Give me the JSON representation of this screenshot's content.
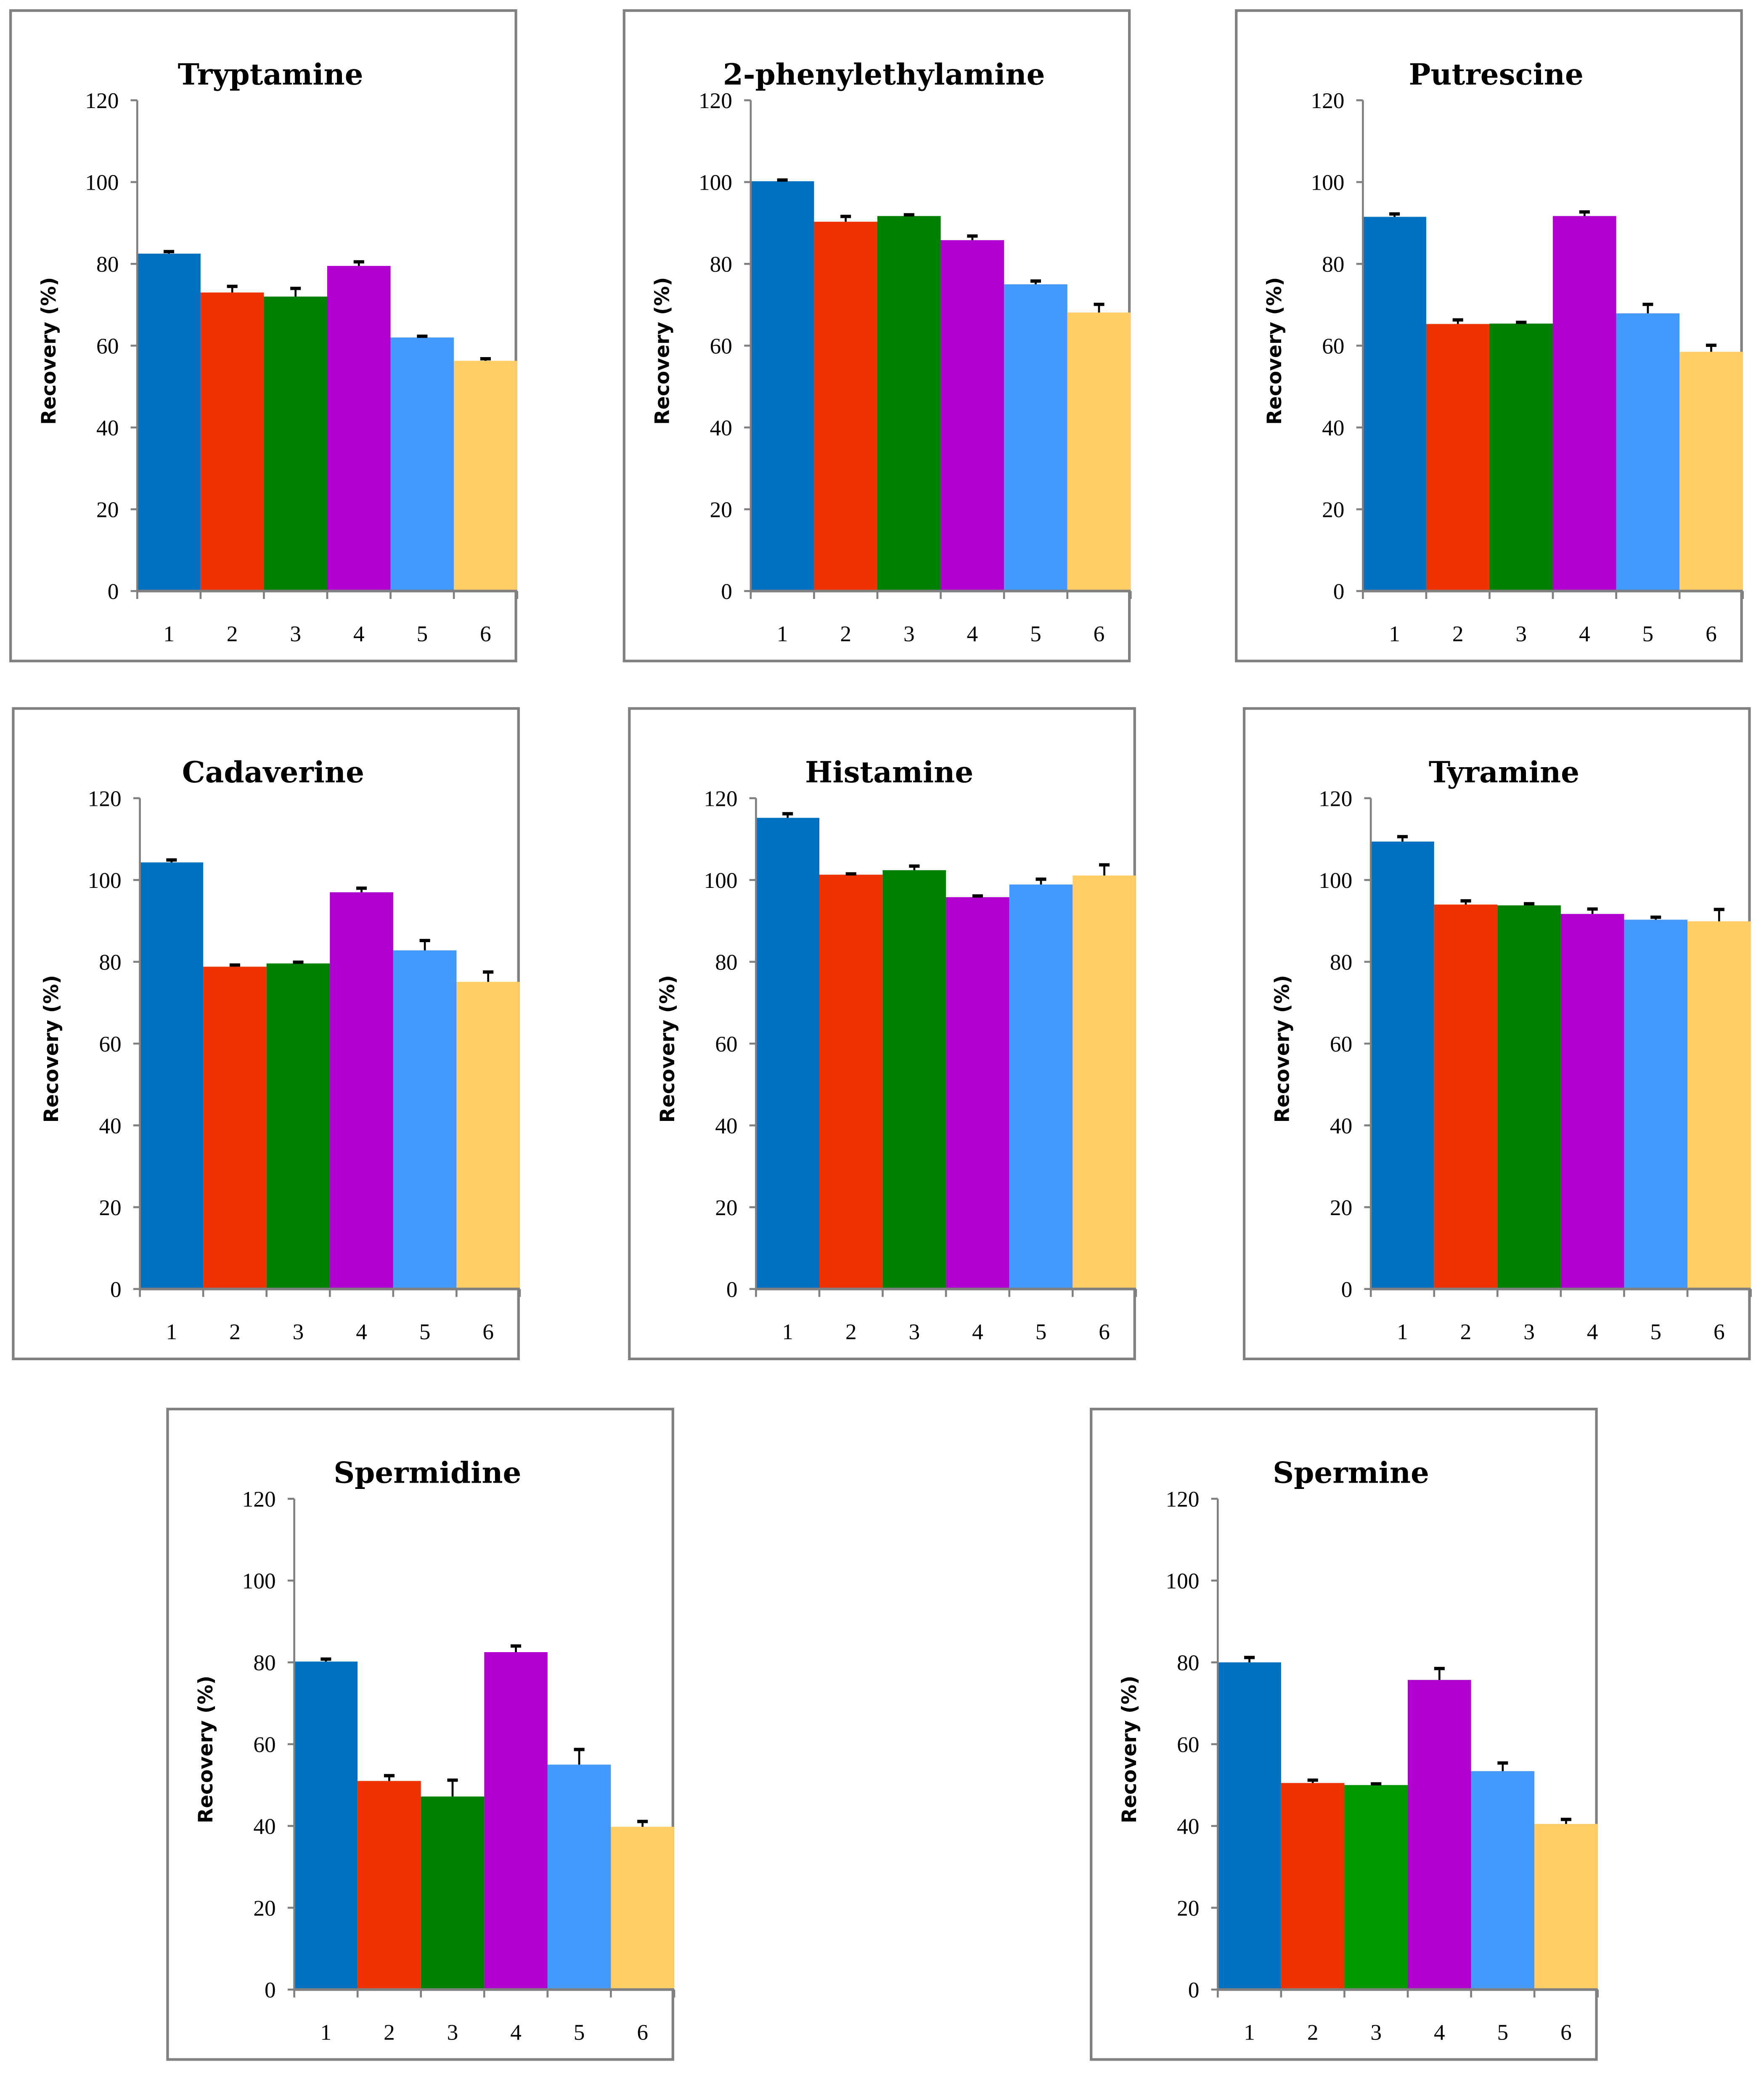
{
  "chart_data": [
    {
      "type": "bar",
      "title": "Tryptamine",
      "ylabel": "Recovery (%)",
      "xlabel": "",
      "ylim": [
        0,
        120
      ],
      "yticks": [
        0,
        20,
        40,
        60,
        80,
        100,
        120
      ],
      "categories": [
        "1",
        "2",
        "3",
        "4",
        "5",
        "6"
      ],
      "values": [
        82.5,
        73,
        72,
        79.5,
        62,
        56.3
      ],
      "errors": [
        0.5,
        1.5,
        2,
        1,
        0.3,
        0.5
      ],
      "colors": [
        "#0070C0",
        "#EE3300",
        "#008000",
        "#B000D0",
        "#4499FF",
        "#FFCC66"
      ]
    },
    {
      "type": "bar",
      "title": "2-phenylethylamine",
      "ylabel": "Recovery (%)",
      "xlabel": "",
      "ylim": [
        0,
        120
      ],
      "yticks": [
        0,
        20,
        40,
        60,
        80,
        100,
        120
      ],
      "categories": [
        "1",
        "2",
        "3",
        "4",
        "5",
        "6"
      ],
      "values": [
        100.2,
        90.3,
        91.7,
        85.8,
        75,
        68.1
      ],
      "errors": [
        0.3,
        1.3,
        0.3,
        1,
        0.8,
        2
      ],
      "colors": [
        "#0070C0",
        "#EE3300",
        "#008000",
        "#B000D0",
        "#4499FF",
        "#FFCC66"
      ]
    },
    {
      "type": "bar",
      "title": "Putrescine",
      "ylabel": "Recovery (%)",
      "xlabel": "",
      "ylim": [
        0,
        120
      ],
      "yticks": [
        0,
        20,
        40,
        60,
        80,
        100,
        120
      ],
      "categories": [
        "1",
        "2",
        "3",
        "4",
        "5",
        "6"
      ],
      "values": [
        91.5,
        65.3,
        65.4,
        91.7,
        67.9,
        58.5
      ],
      "errors": [
        0.7,
        1,
        0.3,
        1,
        2.2,
        1.6
      ],
      "colors": [
        "#0070C0",
        "#EE3300",
        "#008000",
        "#B000D0",
        "#4499FF",
        "#FFCC66"
      ]
    },
    {
      "type": "bar",
      "title": "Cadaverine",
      "ylabel": "Recovery (%)",
      "xlabel": "",
      "ylim": [
        0,
        120
      ],
      "yticks": [
        0,
        20,
        40,
        60,
        80,
        100,
        120
      ],
      "categories": [
        "1",
        "2",
        "3",
        "4",
        "5",
        "6"
      ],
      "values": [
        104.3,
        78.8,
        79.6,
        97,
        82.8,
        75.1
      ],
      "errors": [
        0.6,
        0.4,
        0.3,
        1,
        2.4,
        2.4
      ],
      "colors": [
        "#0070C0",
        "#EE3300",
        "#008000",
        "#B000D0",
        "#4499FF",
        "#FFCC66"
      ]
    },
    {
      "type": "bar",
      "title": "Histamine",
      "ylabel": "Recovery (%)",
      "xlabel": "",
      "ylim": [
        0,
        120
      ],
      "yticks": [
        0,
        20,
        40,
        60,
        80,
        100,
        120
      ],
      "categories": [
        "1",
        "2",
        "3",
        "4",
        "5",
        "6"
      ],
      "values": [
        115.2,
        101.3,
        102.4,
        95.8,
        98.9,
        101.1
      ],
      "errors": [
        1,
        0.2,
        1,
        0.3,
        1.3,
        2.6
      ],
      "colors": [
        "#0070C0",
        "#EE3300",
        "#008000",
        "#B000D0",
        "#4499FF",
        "#FFCC66"
      ]
    },
    {
      "type": "bar",
      "title": "Tyramine",
      "ylabel": "Recovery (%)",
      "xlabel": "",
      "ylim": [
        0,
        120
      ],
      "yticks": [
        0,
        20,
        40,
        60,
        80,
        100,
        120
      ],
      "categories": [
        "1",
        "2",
        "3",
        "4",
        "5",
        "6"
      ],
      "values": [
        109.4,
        94,
        93.8,
        91.7,
        90.3,
        89.9
      ],
      "errors": [
        1.2,
        0.9,
        0.4,
        1.2,
        0.6,
        2.9
      ],
      "colors": [
        "#0070C0",
        "#EE3300",
        "#008000",
        "#B000D0",
        "#4499FF",
        "#FFCC66"
      ]
    },
    {
      "type": "bar",
      "title": "Spermidine",
      "ylabel": "Recovery (%)",
      "xlabel": "",
      "ylim": [
        0,
        120
      ],
      "yticks": [
        0,
        20,
        40,
        60,
        80,
        100,
        120
      ],
      "categories": [
        "1",
        "2",
        "3",
        "4",
        "5",
        "6"
      ],
      "values": [
        80.2,
        51,
        47.2,
        82.5,
        55,
        39.8
      ],
      "errors": [
        0.6,
        1.3,
        4,
        1.5,
        3.7,
        1.3
      ],
      "colors": [
        "#0070C0",
        "#EE3300",
        "#008000",
        "#B000D0",
        "#4499FF",
        "#FFCC66"
      ]
    },
    {
      "type": "bar",
      "title": "Spermine",
      "ylabel": "Recovery (%)",
      "xlabel": "",
      "ylim": [
        0,
        120
      ],
      "yticks": [
        0,
        20,
        40,
        60,
        80,
        100,
        120
      ],
      "categories": [
        "1",
        "2",
        "3",
        "4",
        "5",
        "6"
      ],
      "values": [
        80,
        50.5,
        50,
        75.7,
        53.4,
        40.5
      ],
      "errors": [
        1.2,
        0.7,
        0.3,
        2.8,
        2,
        1.1
      ],
      "colors": [
        "#0070C0",
        "#EE3300",
        "#009900",
        "#B000D0",
        "#4499FF",
        "#FFCC66"
      ]
    }
  ]
}
